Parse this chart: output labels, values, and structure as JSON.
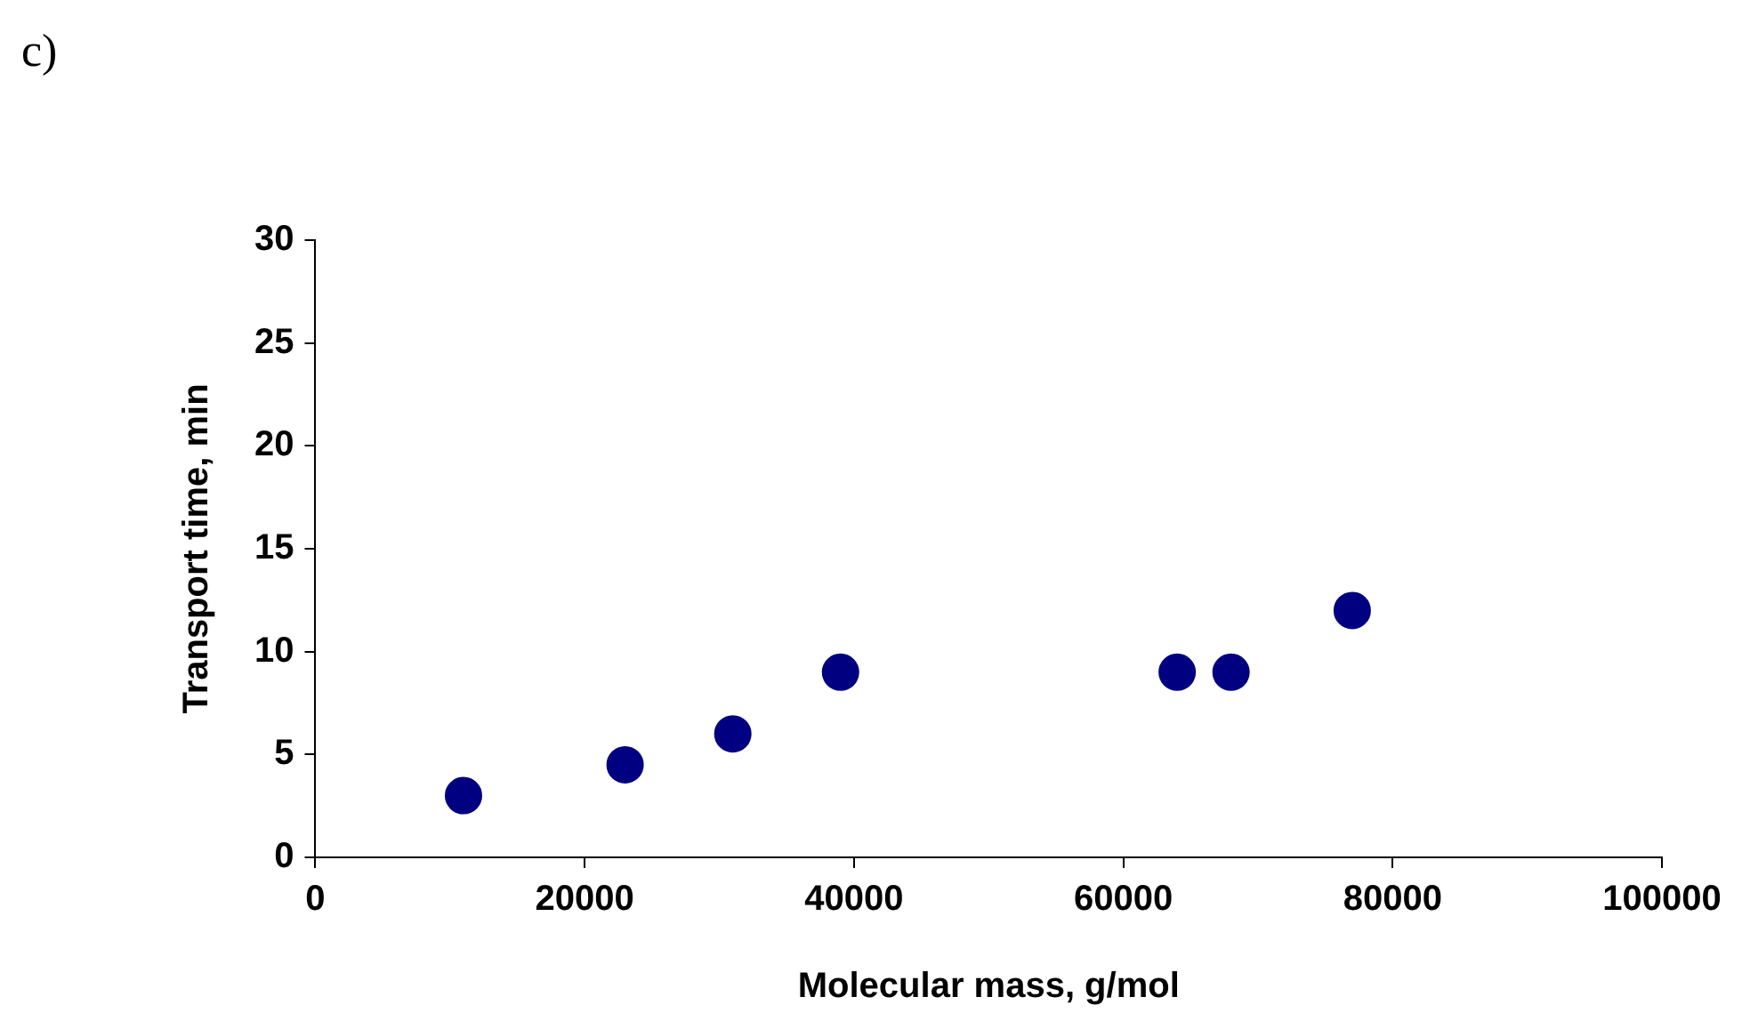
{
  "chart_data": {
    "type": "scatter",
    "xlabel": "Molecular mass, g/mol",
    "ylabel": "Transport time, min",
    "annotations": [
      "c)"
    ],
    "x": [
      11000,
      23000,
      31000,
      39000,
      64000,
      68000,
      77000
    ],
    "series": [
      {
        "color": "#000080",
        "values": [
          3,
          4.5,
          6,
          9,
          9,
          9,
          12
        ]
      }
    ],
    "xlim": [
      0,
      100000
    ],
    "xticks": [
      0,
      20000,
      40000,
      60000,
      80000,
      100000
    ],
    "ylim": [
      0,
      30
    ],
    "yticks": [
      0,
      5,
      10,
      15,
      20,
      25,
      30
    ],
    "marker": "circle",
    "grid": false,
    "legend": false
  }
}
